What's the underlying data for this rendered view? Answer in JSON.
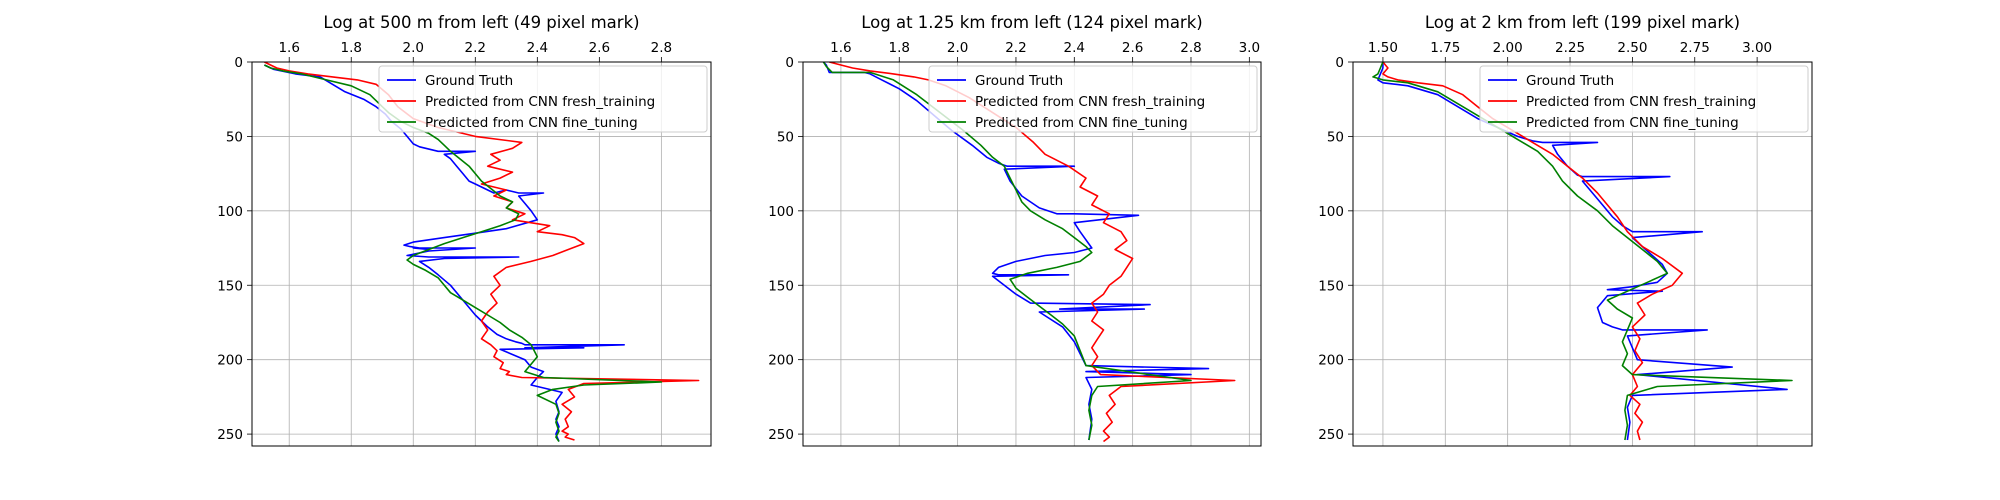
{
  "chart_data": [
    {
      "type": "line",
      "title": "Log at 500 m from left (49 pixel mark)",
      "xlim": [
        1.48,
        2.96
      ],
      "ylim": [
        258,
        0
      ],
      "xticks": [
        "1.6",
        "1.8",
        "2.0",
        "2.2",
        "2.4",
        "2.6",
        "2.8"
      ],
      "xtick_values": [
        1.6,
        1.8,
        2.0,
        2.2,
        2.4,
        2.6,
        2.8
      ],
      "yticks": [
        "0",
        "50",
        "100",
        "150",
        "200",
        "250"
      ],
      "ytick_values": [
        0,
        50,
        100,
        150,
        200,
        250
      ],
      "grid": true,
      "x_axis_position": "top",
      "y_axis_inverted": true,
      "legend_position": "upper-right",
      "series": [
        {
          "name": "Ground Truth",
          "color": "#0000ff",
          "x": [
            1.52,
            1.55,
            1.62,
            1.7,
            1.78,
            1.84,
            1.88,
            1.91,
            1.93,
            1.96,
            1.98,
            2.0,
            2.02,
            2.04,
            2.06,
            2.08,
            2.1,
            2.2,
            2.1,
            2.12,
            2.14,
            2.16,
            2.18,
            2.2,
            2.22,
            2.24,
            2.26,
            2.28,
            2.3,
            2.32,
            2.34,
            2.42,
            2.34,
            2.36,
            2.38,
            2.4,
            2.3,
            2.2,
            2.1,
            2.0,
            1.97,
            1.99,
            2.02,
            2.05,
            2.0,
            2.2,
            2.05,
            1.98,
            2.05,
            2.34,
            2.1,
            2.02,
            2.05,
            2.08,
            2.12,
            2.16,
            2.2,
            2.24,
            2.27,
            2.3,
            2.33,
            2.35,
            2.36,
            2.68,
            2.36,
            2.55,
            2.28,
            2.36,
            2.38,
            2.42,
            2.4,
            2.38,
            2.48,
            2.46,
            2.47,
            2.46,
            2.47,
            2.46,
            2.47
          ],
          "y": [
            2,
            5,
            8,
            10,
            20,
            25,
            30,
            35,
            40,
            45,
            50,
            55,
            57,
            58,
            59,
            60,
            60,
            60,
            62,
            65,
            70,
            75,
            80,
            82,
            84,
            86,
            88,
            87,
            86,
            87,
            88,
            88,
            90,
            95,
            100,
            106,
            112,
            115,
            118,
            121,
            123,
            124,
            125,
            126,
            125,
            125,
            127,
            130,
            131,
            131,
            132,
            134,
            138,
            143,
            150,
            160,
            170,
            178,
            183,
            186,
            188,
            189,
            190,
            190,
            192,
            192,
            193,
            200,
            205,
            208,
            212,
            217,
            222,
            228,
            235,
            240,
            245,
            250,
            255
          ]
        },
        {
          "name": "Predicted from CNN fresh_training",
          "color": "#ff0000",
          "x": [
            1.52,
            1.54,
            1.56,
            1.6,
            1.66,
            1.74,
            1.82,
            1.88,
            1.92,
            1.95,
            2.0,
            2.08,
            2.2,
            2.35,
            2.32,
            2.25,
            2.28,
            2.24,
            2.32,
            2.28,
            2.22,
            2.3,
            2.26,
            2.32,
            2.3,
            2.36,
            2.32,
            2.44,
            2.4,
            2.48,
            2.52,
            2.55,
            2.5,
            2.45,
            2.38,
            2.3,
            2.26,
            2.28,
            2.25,
            2.27,
            2.24,
            2.22,
            2.24,
            2.22,
            2.25,
            2.27,
            2.26,
            2.29,
            2.28,
            2.31,
            2.3,
            2.35,
            2.92,
            2.55,
            2.5,
            2.52,
            2.48,
            2.51,
            2.49,
            2.5,
            2.48,
            2.5,
            2.49,
            2.52
          ],
          "y": [
            0,
            2,
            4,
            6,
            8,
            10,
            12,
            15,
            22,
            30,
            38,
            44,
            50,
            54,
            58,
            62,
            66,
            70,
            74,
            78,
            82,
            86,
            90,
            94,
            98,
            102,
            106,
            110,
            114,
            116,
            118,
            122,
            126,
            130,
            134,
            138,
            144,
            150,
            156,
            162,
            168,
            174,
            180,
            186,
            190,
            194,
            198,
            202,
            206,
            208,
            210,
            212,
            214,
            216,
            220,
            225,
            230,
            235,
            240,
            245,
            248,
            250,
            252,
            254
          ]
        },
        {
          "name": "Predicted from CNN fine_tuning",
          "color": "#008000",
          "x": [
            1.52,
            1.54,
            1.58,
            1.64,
            1.72,
            1.8,
            1.86,
            1.89,
            1.92,
            1.96,
            2.0,
            2.05,
            2.08,
            2.1,
            2.12,
            2.15,
            2.18,
            2.2,
            2.22,
            2.25,
            2.28,
            2.32,
            2.3,
            2.34,
            2.33,
            2.28,
            2.22,
            2.16,
            2.1,
            2.05,
            2.0,
            1.98,
            2.0,
            2.04,
            2.08,
            2.1,
            2.12,
            2.16,
            2.2,
            2.24,
            2.28,
            2.31,
            2.35,
            2.38,
            2.4,
            2.36,
            2.42,
            2.8,
            2.55,
            2.45,
            2.4,
            2.46,
            2.47,
            2.46,
            2.47,
            2.46,
            2.47
          ],
          "y": [
            2,
            4,
            6,
            8,
            12,
            16,
            22,
            28,
            34,
            40,
            44,
            48,
            52,
            56,
            60,
            65,
            70,
            75,
            80,
            85,
            90,
            94,
            98,
            102,
            106,
            110,
            114,
            118,
            122,
            126,
            130,
            133,
            136,
            140,
            145,
            150,
            155,
            160,
            165,
            170,
            175,
            180,
            185,
            190,
            198,
            208,
            212,
            215,
            217,
            220,
            224,
            230,
            236,
            242,
            248,
            252,
            255
          ]
        }
      ]
    },
    {
      "type": "line",
      "title": "Log at 1.25 km from left (124 pixel mark)",
      "xlim": [
        1.47,
        3.04
      ],
      "ylim": [
        258,
        0
      ],
      "xticks": [
        "1.6",
        "1.8",
        "2.0",
        "2.2",
        "2.4",
        "2.6",
        "2.8",
        "3.0"
      ],
      "xtick_values": [
        1.6,
        1.8,
        2.0,
        2.2,
        2.4,
        2.6,
        2.8,
        3.0
      ],
      "yticks": [
        "0",
        "50",
        "100",
        "150",
        "200",
        "250"
      ],
      "ytick_values": [
        0,
        50,
        100,
        150,
        200,
        250
      ],
      "grid": true,
      "x_axis_position": "top",
      "y_axis_inverted": true,
      "legend_position": "upper-right",
      "series": [
        {
          "name": "Ground Truth",
          "color": "#0000ff",
          "x": [
            1.54,
            1.55,
            1.56,
            1.68,
            1.7,
            1.74,
            1.8,
            1.86,
            1.92,
            1.98,
            2.05,
            2.1,
            2.14,
            2.17,
            2.4,
            2.16,
            2.18,
            2.22,
            2.28,
            2.34,
            2.4,
            2.62,
            2.4,
            2.42,
            2.46,
            2.4,
            2.3,
            2.2,
            2.14,
            2.12,
            2.14,
            2.38,
            2.12,
            2.16,
            2.2,
            2.25,
            2.66,
            2.35,
            2.64,
            2.28,
            2.36,
            2.4,
            2.42,
            2.44,
            2.86,
            2.44,
            2.8,
            2.44,
            2.46,
            2.45,
            2.46,
            2.45
          ],
          "y": [
            0,
            2,
            7,
            7,
            8,
            12,
            18,
            26,
            36,
            46,
            56,
            64,
            68,
            70,
            70,
            72,
            80,
            90,
            98,
            102,
            102,
            103,
            108,
            114,
            125,
            128,
            130,
            134,
            138,
            142,
            143,
            143,
            144,
            150,
            156,
            162,
            163,
            166,
            166,
            168,
            178,
            188,
            196,
            204,
            206,
            208,
            210,
            212,
            220,
            230,
            240,
            254
          ]
        },
        {
          "name": "Predicted from CNN fresh_training",
          "color": "#ff0000",
          "x": [
            1.56,
            1.6,
            1.64,
            1.7,
            1.78,
            1.85,
            1.9,
            1.96,
            2.04,
            2.12,
            2.2,
            2.26,
            2.3,
            2.38,
            2.44,
            2.42,
            2.48,
            2.46,
            2.52,
            2.5,
            2.56,
            2.58,
            2.54,
            2.6,
            2.58,
            2.56,
            2.52,
            2.5,
            2.46,
            2.48,
            2.46,
            2.5,
            2.48,
            2.46,
            2.48,
            2.46,
            2.49,
            2.95,
            2.56,
            2.52,
            2.54,
            2.51,
            2.53,
            2.5,
            2.52,
            2.5
          ],
          "y": [
            0,
            2,
            4,
            6,
            8,
            10,
            12,
            16,
            24,
            34,
            44,
            54,
            62,
            70,
            78,
            84,
            90,
            96,
            102,
            108,
            114,
            120,
            126,
            132,
            138,
            144,
            150,
            156,
            162,
            168,
            174,
            180,
            186,
            192,
            198,
            204,
            210,
            214,
            218,
            224,
            230,
            236,
            242,
            248,
            252,
            255
          ]
        },
        {
          "name": "Predicted from CNN fine_tuning",
          "color": "#008000",
          "x": [
            1.54,
            1.55,
            1.57,
            1.7,
            1.78,
            1.86,
            1.94,
            2.02,
            2.08,
            2.12,
            2.16,
            2.18,
            2.2,
            2.22,
            2.25,
            2.3,
            2.36,
            2.4,
            2.44,
            2.46,
            2.42,
            2.34,
            2.24,
            2.18,
            2.2,
            2.24,
            2.28,
            2.32,
            2.36,
            2.4,
            2.42,
            2.44,
            2.8,
            2.48,
            2.46,
            2.45,
            2.46,
            2.45
          ],
          "y": [
            0,
            3,
            7,
            7,
            12,
            22,
            34,
            46,
            56,
            64,
            70,
            78,
            86,
            94,
            100,
            106,
            112,
            118,
            124,
            128,
            134,
            138,
            142,
            146,
            152,
            158,
            164,
            170,
            176,
            184,
            194,
            204,
            214,
            218,
            224,
            234,
            244,
            254
          ]
        }
      ]
    },
    {
      "type": "line",
      "title": "Log at 2 km from left (199 pixel mark)",
      "xlim": [
        1.38,
        3.22
      ],
      "ylim": [
        258,
        0
      ],
      "xticks": [
        "1.50",
        "1.75",
        "2.00",
        "2.25",
        "2.50",
        "2.75",
        "3.00"
      ],
      "xtick_values": [
        1.5,
        1.75,
        2.0,
        2.25,
        2.5,
        2.75,
        3.0
      ],
      "yticks": [
        "0",
        "50",
        "100",
        "150",
        "200",
        "250"
      ],
      "ytick_values": [
        0,
        50,
        100,
        150,
        200,
        250
      ],
      "grid": true,
      "x_axis_position": "top",
      "y_axis_inverted": true,
      "legend_position": "upper-right",
      "series": [
        {
          "name": "Ground Truth",
          "color": "#0000ff",
          "x": [
            1.5,
            1.5,
            1.49,
            1.48,
            1.5,
            1.6,
            1.72,
            1.8,
            1.88,
            1.96,
            2.04,
            2.1,
            2.14,
            2.18,
            2.36,
            2.18,
            2.2,
            2.24,
            2.28,
            2.3,
            2.65,
            2.3,
            2.34,
            2.38,
            2.42,
            2.46,
            2.5,
            2.78,
            2.5,
            2.54,
            2.58,
            2.62,
            2.64,
            2.6,
            2.5,
            2.4,
            2.62,
            2.4,
            2.36,
            2.38,
            2.42,
            2.46,
            2.8,
            2.48,
            2.5,
            2.52,
            2.9,
            2.52,
            3.12,
            2.5,
            2.48,
            2.49,
            2.48
          ],
          "y": [
            0,
            4,
            8,
            12,
            14,
            16,
            22,
            30,
            38,
            44,
            50,
            53,
            54,
            54,
            54,
            56,
            62,
            70,
            76,
            77,
            77,
            80,
            88,
            96,
            104,
            110,
            114,
            114,
            118,
            124,
            130,
            136,
            142,
            148,
            151,
            153,
            154,
            157,
            165,
            175,
            178,
            180,
            180,
            184,
            192,
            200,
            205,
            210,
            220,
            224,
            232,
            242,
            254
          ]
        },
        {
          "name": "Predicted from CNN fresh_training",
          "color": "#ff0000",
          "x": [
            1.5,
            1.52,
            1.5,
            1.52,
            1.56,
            1.64,
            1.74,
            1.82,
            1.88,
            1.94,
            2.02,
            2.1,
            2.18,
            2.24,
            2.3,
            2.36,
            2.4,
            2.44,
            2.48,
            2.54,
            2.62,
            2.7,
            2.66,
            2.58,
            2.52,
            2.55,
            2.5,
            2.53,
            2.51,
            2.54,
            2.5,
            2.52,
            2.49,
            2.53,
            2.51,
            2.54,
            2.52,
            2.53
          ],
          "y": [
            0,
            4,
            8,
            10,
            12,
            14,
            16,
            22,
            30,
            38,
            46,
            54,
            62,
            70,
            78,
            88,
            96,
            104,
            114,
            124,
            132,
            142,
            150,
            156,
            162,
            170,
            178,
            186,
            194,
            202,
            210,
            218,
            224,
            230,
            236,
            242,
            248,
            254
          ]
        },
        {
          "name": "Predicted from CNN fine_tuning",
          "color": "#008000",
          "x": [
            1.5,
            1.49,
            1.48,
            1.46,
            1.5,
            1.6,
            1.72,
            1.8,
            1.88,
            1.96,
            2.04,
            2.12,
            2.18,
            2.22,
            2.28,
            2.36,
            2.42,
            2.48,
            2.54,
            2.6,
            2.64,
            2.56,
            2.48,
            2.4,
            2.44,
            2.5,
            2.48,
            2.46,
            2.48,
            2.46,
            2.5,
            3.14,
            2.6,
            2.48,
            2.47,
            2.48,
            2.47
          ],
          "y": [
            0,
            4,
            8,
            10,
            12,
            14,
            20,
            28,
            36,
            44,
            52,
            60,
            70,
            80,
            90,
            100,
            110,
            118,
            126,
            134,
            142,
            148,
            154,
            160,
            166,
            172,
            180,
            188,
            196,
            204,
            210,
            214,
            218,
            224,
            234,
            244,
            254
          ]
        }
      ]
    }
  ]
}
